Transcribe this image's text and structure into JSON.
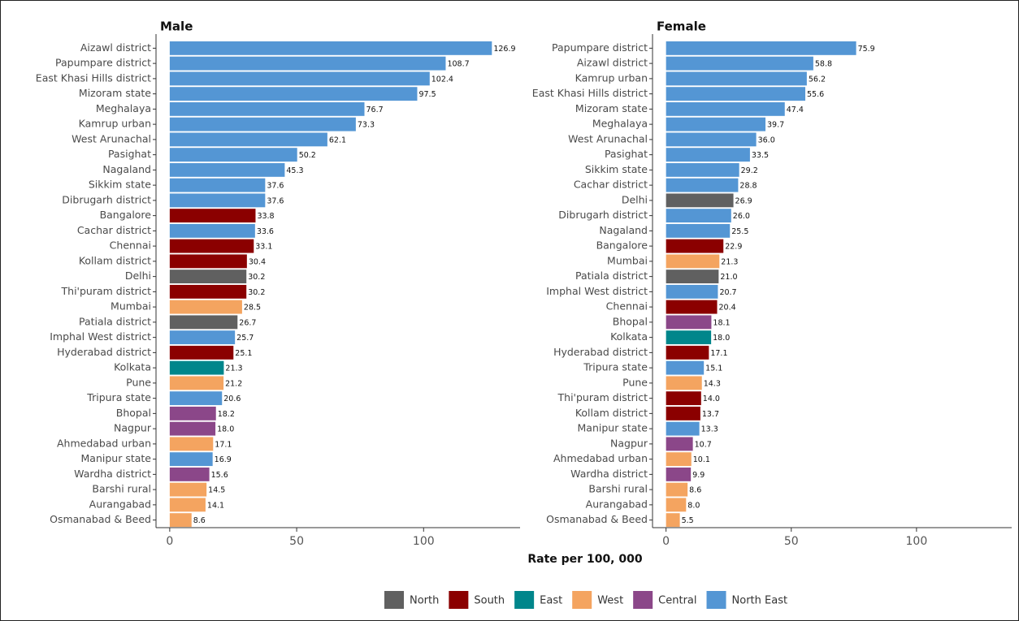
{
  "chart_data": [
    {
      "type": "bar",
      "orientation": "horizontal",
      "title": "Male",
      "categories": [
        "Aizawl district",
        "Papumpare district",
        "East Khasi Hills district",
        "Mizoram state",
        "Meghalaya",
        "Kamrup urban",
        "West Arunachal",
        "Pasighat",
        "Nagaland",
        "Sikkim state",
        "Dibrugarh district",
        "Bangalore",
        "Cachar district",
        "Chennai",
        "Kollam district",
        "Delhi",
        "Thi'puram district",
        "Mumbai",
        "Patiala district",
        "Imphal West district",
        "Hyderabad district",
        "Kolkata",
        "Pune",
        "Tripura state",
        "Bhopal",
        "Nagpur",
        "Ahmedabad urban",
        "Manipur state",
        "Wardha district",
        "Barshi rural",
        "Aurangabad",
        "Osmanabad & Beed"
      ],
      "values": [
        126.9,
        108.7,
        102.4,
        97.5,
        76.7,
        73.3,
        62.1,
        50.2,
        45.3,
        37.6,
        37.6,
        33.8,
        33.6,
        33.1,
        30.4,
        30.2,
        30.2,
        28.5,
        26.7,
        25.7,
        25.1,
        21.3,
        21.2,
        20.6,
        18.2,
        18.0,
        17.1,
        16.9,
        15.6,
        14.5,
        14.1,
        8.6
      ],
      "value_labels": [
        "126.9",
        "108.7",
        "102.4",
        "97.5",
        "76.7",
        "73.3",
        "62.1",
        "50.2",
        "45.3",
        "37.6",
        "37.6",
        "33.8",
        "33.6",
        "33.1",
        "30.4",
        "30.2",
        "30.2",
        "28.5",
        "26.7",
        "25.7",
        "25.1",
        "21.3",
        "21.2",
        "20.6",
        "18.2",
        "18.0",
        "17.1",
        "16.9",
        "15.6",
        "14.5",
        "14.1",
        "8.6"
      ],
      "colors": [
        "#5496d4",
        "#5496d4",
        "#5496d4",
        "#5496d4",
        "#5496d4",
        "#5496d4",
        "#5496d4",
        "#5496d4",
        "#5496d4",
        "#5496d4",
        "#5496d4",
        "#8b0000",
        "#5496d4",
        "#8b0000",
        "#8b0000",
        "#606060",
        "#8b0000",
        "#f4a460",
        "#606060",
        "#5496d4",
        "#8b0000",
        "#00868b",
        "#f4a460",
        "#5496d4",
        "#8b4789",
        "#8b4789",
        "#f4a460",
        "#5496d4",
        "#8b4789",
        "#f4a460",
        "#f4a460",
        "#f4a460"
      ],
      "xlim": [
        -5.4,
        138
      ],
      "xticks": [
        0,
        50,
        100
      ]
    },
    {
      "type": "bar",
      "orientation": "horizontal",
      "title": "Female",
      "categories": [
        "Papumpare district",
        "Aizawl district",
        "Kamrup urban",
        "East Khasi Hills district",
        "Mizoram state",
        "Meghalaya",
        "West Arunachal",
        "Pasighat",
        "Sikkim state",
        "Cachar district",
        "Delhi",
        "Dibrugarh district",
        "Nagaland",
        "Bangalore",
        "Mumbai",
        "Patiala district",
        "Imphal West district",
        "Chennai",
        "Bhopal",
        "Kolkata",
        "Hyderabad district",
        "Tripura state",
        "Pune",
        "Thi'puram district",
        "Kollam district",
        "Manipur state",
        "Nagpur",
        "Ahmedabad urban",
        "Wardha district",
        "Barshi rural",
        "Aurangabad",
        "Osmanabad & Beed"
      ],
      "values": [
        75.9,
        58.8,
        56.2,
        55.6,
        47.4,
        39.7,
        36.0,
        33.5,
        29.2,
        28.8,
        26.9,
        26.0,
        25.5,
        22.9,
        21.3,
        21.0,
        20.7,
        20.4,
        18.1,
        18.0,
        17.1,
        15.1,
        14.3,
        14.0,
        13.7,
        13.3,
        10.7,
        10.1,
        9.9,
        8.6,
        8.0,
        5.5
      ],
      "value_labels": [
        "75.9",
        "58.8",
        "56.2",
        "55.6",
        "47.4",
        "39.7",
        "36.0",
        "33.5",
        "29.2",
        "28.8",
        "26.9",
        "26.0",
        "25.5",
        "22.9",
        "21.3",
        "21.0",
        "20.7",
        "20.4",
        "18.1",
        "18.0",
        "17.1",
        "15.1",
        "14.3",
        "14.0",
        "13.7",
        "13.3",
        "10.7",
        "10.1",
        "9.9",
        "8.6",
        "8.0",
        "5.5"
      ],
      "colors": [
        "#5496d4",
        "#5496d4",
        "#5496d4",
        "#5496d4",
        "#5496d4",
        "#5496d4",
        "#5496d4",
        "#5496d4",
        "#5496d4",
        "#5496d4",
        "#606060",
        "#5496d4",
        "#5496d4",
        "#8b0000",
        "#f4a460",
        "#606060",
        "#5496d4",
        "#8b0000",
        "#8b4789",
        "#00868b",
        "#8b0000",
        "#5496d4",
        "#f4a460",
        "#8b0000",
        "#8b0000",
        "#5496d4",
        "#8b4789",
        "#f4a460",
        "#8b4789",
        "#f4a460",
        "#f4a460",
        "#f4a460"
      ],
      "xlim": [
        -5.4,
        138
      ],
      "xticks": [
        0,
        50,
        100
      ]
    }
  ],
  "xlabel": "Rate per 100, 000",
  "legend": [
    {
      "name": "North",
      "color": "#606060"
    },
    {
      "name": "South",
      "color": "#8b0000"
    },
    {
      "name": "East",
      "color": "#00868b"
    },
    {
      "name": "West",
      "color": "#f4a460"
    },
    {
      "name": "Central",
      "color": "#8b4789"
    },
    {
      "name": "North East",
      "color": "#5496d4"
    }
  ]
}
